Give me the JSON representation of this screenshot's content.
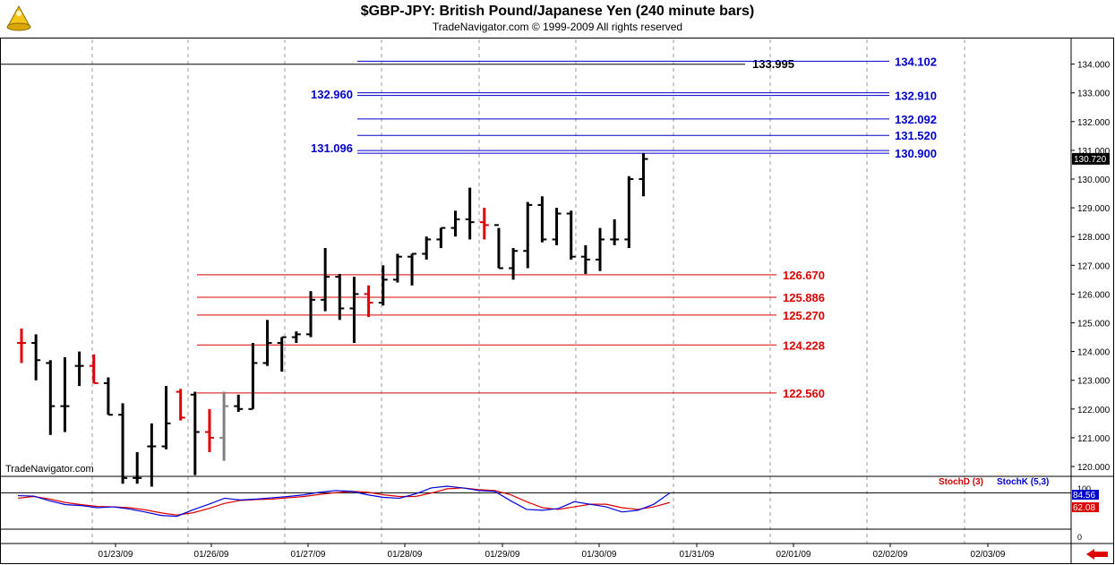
{
  "header": {
    "title": "$GBP-JPY:  British Pound/Japanese Yen  (240 minute bars)",
    "subtitle": "TradeNavigator.com © 1999-2009 All rights reserved"
  },
  "watermark": "TradeNavigator.com",
  "colors": {
    "up": "#000000",
    "down": "#e00000",
    "neutral": "#808080",
    "blue": "#0000cc",
    "red": "#dd0000"
  },
  "chart_data": {
    "type": "bar",
    "price_axis": {
      "ylim": [
        119.6,
        134.4
      ],
      "ticks": [
        "120.000",
        "121.000",
        "122.000",
        "123.000",
        "124.000",
        "125.000",
        "126.000",
        "127.000",
        "128.000",
        "129.000",
        "130.000",
        "131.000",
        "132.000",
        "133.000",
        "134.000"
      ],
      "last_price": "130.720"
    },
    "x_ticks": [
      "01/23/09",
      "01/26/09",
      "01/27/09",
      "01/28/09",
      "01/29/09",
      "01/30/09",
      "01/31/09",
      "02/01/09",
      "02/02/09",
      "02/03/09"
    ],
    "bars": [
      {
        "h": 124.8,
        "l": 123.6,
        "o": 124.3,
        "c": 124.3,
        "color": "down"
      },
      {
        "h": 124.6,
        "l": 123.0,
        "o": 124.3,
        "c": 123.7,
        "color": "up"
      },
      {
        "h": 123.7,
        "l": 121.1,
        "o": 123.6,
        "c": 122.1,
        "color": "up"
      },
      {
        "h": 123.8,
        "l": 121.2,
        "o": 122.1,
        "c": 122.1,
        "color": "up"
      },
      {
        "h": 124.0,
        "l": 122.8,
        "o": 123.5,
        "c": 123.5,
        "color": "up"
      },
      {
        "h": 123.9,
        "l": 122.9,
        "o": 123.5,
        "c": 122.9,
        "color": "down"
      },
      {
        "h": 123.1,
        "l": 121.8,
        "o": 122.9,
        "c": 121.8,
        "color": "up"
      },
      {
        "h": 122.2,
        "l": 119.4,
        "o": 121.8,
        "c": 119.6,
        "color": "up"
      },
      {
        "h": 120.5,
        "l": 119.4,
        "o": 119.6,
        "c": 119.6,
        "color": "up"
      },
      {
        "h": 121.5,
        "l": 119.3,
        "o": 120.7,
        "c": 120.7,
        "color": "up"
      },
      {
        "h": 122.8,
        "l": 120.6,
        "o": 120.7,
        "c": 121.5,
        "color": "up"
      },
      {
        "h": 122.7,
        "l": 121.6,
        "o": 122.6,
        "c": 121.7,
        "color": "down"
      },
      {
        "h": 122.6,
        "l": 119.7,
        "o": 122.5,
        "c": 121.2,
        "color": "up"
      },
      {
        "h": 122.0,
        "l": 120.5,
        "o": 121.2,
        "c": 121.0,
        "color": "down"
      },
      {
        "h": 122.6,
        "l": 120.2,
        "o": 121.0,
        "c": 122.1,
        "color": "neutral"
      },
      {
        "h": 122.5,
        "l": 121.9,
        "o": 122.1,
        "c": 122.0,
        "color": "up"
      },
      {
        "h": 124.3,
        "l": 122.0,
        "o": 122.0,
        "c": 123.6,
        "color": "up"
      },
      {
        "h": 125.1,
        "l": 123.5,
        "o": 123.6,
        "c": 124.3,
        "color": "up"
      },
      {
        "h": 124.5,
        "l": 123.3,
        "o": 124.3,
        "c": 124.5,
        "color": "up"
      },
      {
        "h": 124.7,
        "l": 124.3,
        "o": 124.5,
        "c": 124.6,
        "color": "up"
      },
      {
        "h": 126.1,
        "l": 124.5,
        "o": 124.6,
        "c": 125.8,
        "color": "up"
      },
      {
        "h": 127.6,
        "l": 125.4,
        "o": 125.8,
        "c": 126.6,
        "color": "up"
      },
      {
        "h": 126.7,
        "l": 125.1,
        "o": 126.6,
        "c": 125.5,
        "color": "up"
      },
      {
        "h": 126.6,
        "l": 124.3,
        "o": 125.5,
        "c": 126.0,
        "color": "up"
      },
      {
        "h": 126.3,
        "l": 125.2,
        "o": 126.0,
        "c": 125.7,
        "color": "down"
      },
      {
        "h": 127.0,
        "l": 125.6,
        "o": 125.7,
        "c": 126.5,
        "color": "up"
      },
      {
        "h": 127.4,
        "l": 126.4,
        "o": 126.5,
        "c": 127.3,
        "color": "up"
      },
      {
        "h": 127.4,
        "l": 126.3,
        "o": 127.3,
        "c": 127.4,
        "color": "up"
      },
      {
        "h": 128.0,
        "l": 127.2,
        "o": 127.4,
        "c": 127.9,
        "color": "up"
      },
      {
        "h": 128.3,
        "l": 127.6,
        "o": 127.9,
        "c": 128.3,
        "color": "up"
      },
      {
        "h": 128.9,
        "l": 128.0,
        "o": 128.3,
        "c": 128.6,
        "color": "up"
      },
      {
        "h": 129.7,
        "l": 127.9,
        "o": 128.6,
        "c": 128.5,
        "color": "up"
      },
      {
        "h": 129.0,
        "l": 127.9,
        "o": 128.5,
        "c": 128.4,
        "color": "down"
      },
      {
        "h": 128.3,
        "l": 126.9,
        "o": 128.4,
        "c": 126.9,
        "color": "up"
      },
      {
        "h": 127.6,
        "l": 126.5,
        "o": 126.9,
        "c": 127.5,
        "color": "up"
      },
      {
        "h": 129.2,
        "l": 126.9,
        "o": 127.5,
        "c": 129.1,
        "color": "up"
      },
      {
        "h": 129.4,
        "l": 127.8,
        "o": 129.1,
        "c": 127.9,
        "color": "up"
      },
      {
        "h": 129.0,
        "l": 127.7,
        "o": 127.9,
        "c": 128.8,
        "color": "up"
      },
      {
        "h": 128.9,
        "l": 127.2,
        "o": 128.8,
        "c": 127.3,
        "color": "up"
      },
      {
        "h": 127.7,
        "l": 126.7,
        "o": 127.3,
        "c": 127.2,
        "color": "up"
      },
      {
        "h": 128.3,
        "l": 126.8,
        "o": 127.2,
        "c": 127.9,
        "color": "up"
      },
      {
        "h": 128.6,
        "l": 127.7,
        "o": 127.9,
        "c": 127.9,
        "color": "up"
      },
      {
        "h": 130.1,
        "l": 127.6,
        "o": 127.9,
        "c": 130.0,
        "color": "up"
      },
      {
        "h": 130.9,
        "l": 129.4,
        "o": 130.0,
        "c": 130.7,
        "color": "up"
      }
    ],
    "levels_blue": [
      {
        "value": 134.102,
        "label": "134.102",
        "style": "single"
      },
      {
        "value": 132.91,
        "label": "132.910",
        "style": "double"
      },
      {
        "value": 132.092,
        "label": "132.092",
        "style": "single"
      },
      {
        "value": 131.52,
        "label": "131.520",
        "style": "single"
      },
      {
        "value": 130.9,
        "label": "130.900",
        "style": "double"
      }
    ],
    "levels_blue_left": [
      {
        "value": 132.96,
        "label": "132.960"
      },
      {
        "value": 131.096,
        "label": "131.096"
      }
    ],
    "level_black": {
      "value": 133.995,
      "label": "133.995"
    },
    "levels_red": [
      {
        "value": 126.67,
        "label": "126.670"
      },
      {
        "value": 125.886,
        "label": "125.886"
      },
      {
        "value": 125.27,
        "label": "125.270"
      },
      {
        "value": 124.228,
        "label": "124.228"
      },
      {
        "value": 122.56,
        "label": "122.560"
      }
    ],
    "stochastic": {
      "stochD_label": "StochD (3)",
      "stochK_label": "StochK (5,3)",
      "axis_labels": [
        "100",
        "0"
      ],
      "stochK_value": "84.56",
      "stochD_value": "62.08",
      "stochK": [
        78,
        77,
        66,
        57,
        55,
        50,
        52,
        47,
        40,
        32,
        30,
        45,
        58,
        72,
        68,
        70,
        73,
        76,
        80,
        86,
        90,
        88,
        80,
        74,
        72,
        82,
        96,
        100,
        96,
        90,
        88,
        66,
        46,
        44,
        48,
        64,
        58,
        52,
        40,
        44,
        58,
        84
      ],
      "stochD": [
        72,
        76,
        70,
        62,
        57,
        53,
        52,
        50,
        45,
        38,
        33,
        38,
        48,
        60,
        67,
        69,
        70,
        73,
        76,
        81,
        85,
        88,
        86,
        80,
        76,
        76,
        84,
        94,
        96,
        92,
        90,
        80,
        64,
        50,
        46,
        52,
        58,
        58,
        50,
        46,
        52,
        62
      ]
    }
  }
}
